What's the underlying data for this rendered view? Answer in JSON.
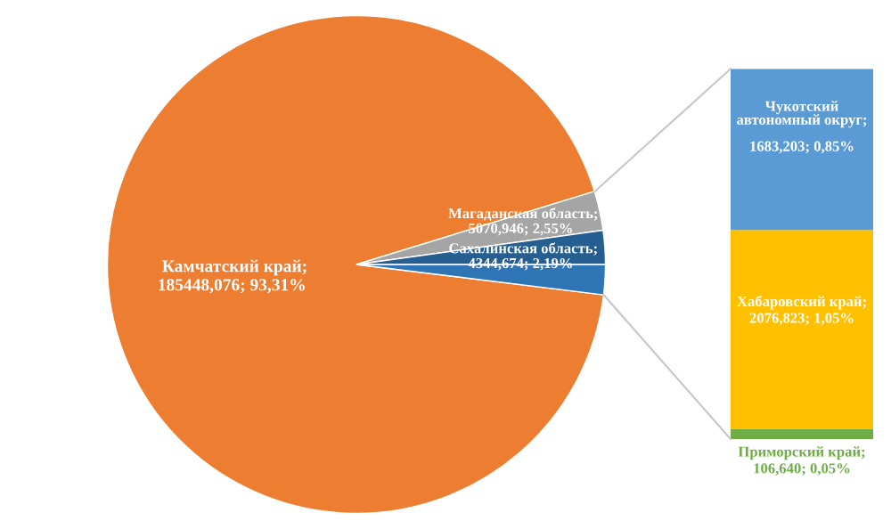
{
  "chart_data": [
    {
      "type": "pie",
      "categories": [
        "Камчатский край",
        "Магаданская область",
        "Сахалинская область",
        null
      ],
      "values": [
        93.31,
        2.55,
        2.19,
        1.95
      ],
      "colors": [
        "#ed7d31",
        "#a5a5a5",
        "#255e91",
        "#2e75b6"
      ],
      "value_labels": [
        "185448,076; 93,31%",
        "5070,946; 2,55%",
        "4344,674; 2,19%",
        null
      ],
      "annotations": [
        ";",
        ";",
        ";"
      ]
    },
    {
      "type": "bar",
      "stacked": true,
      "categories": [
        null
      ],
      "series": [
        {
          "name": "Приморский край;",
          "color": "#70ad47",
          "values": [
            106.64
          ],
          "value_labels": [
            "106,640; 0,05%"
          ]
        },
        {
          "name": "Хабаровский край;",
          "color": "#ffc000",
          "values": [
            2076.823
          ],
          "value_labels": [
            "2076,823; 1,05%"
          ]
        },
        {
          "name": "Чукотский автономный округ;",
          "color": "#5b9bd5",
          "values": [
            1683.203
          ],
          "value_labels": [
            "1683,203; 0,85%"
          ]
        }
      ]
    }
  ]
}
